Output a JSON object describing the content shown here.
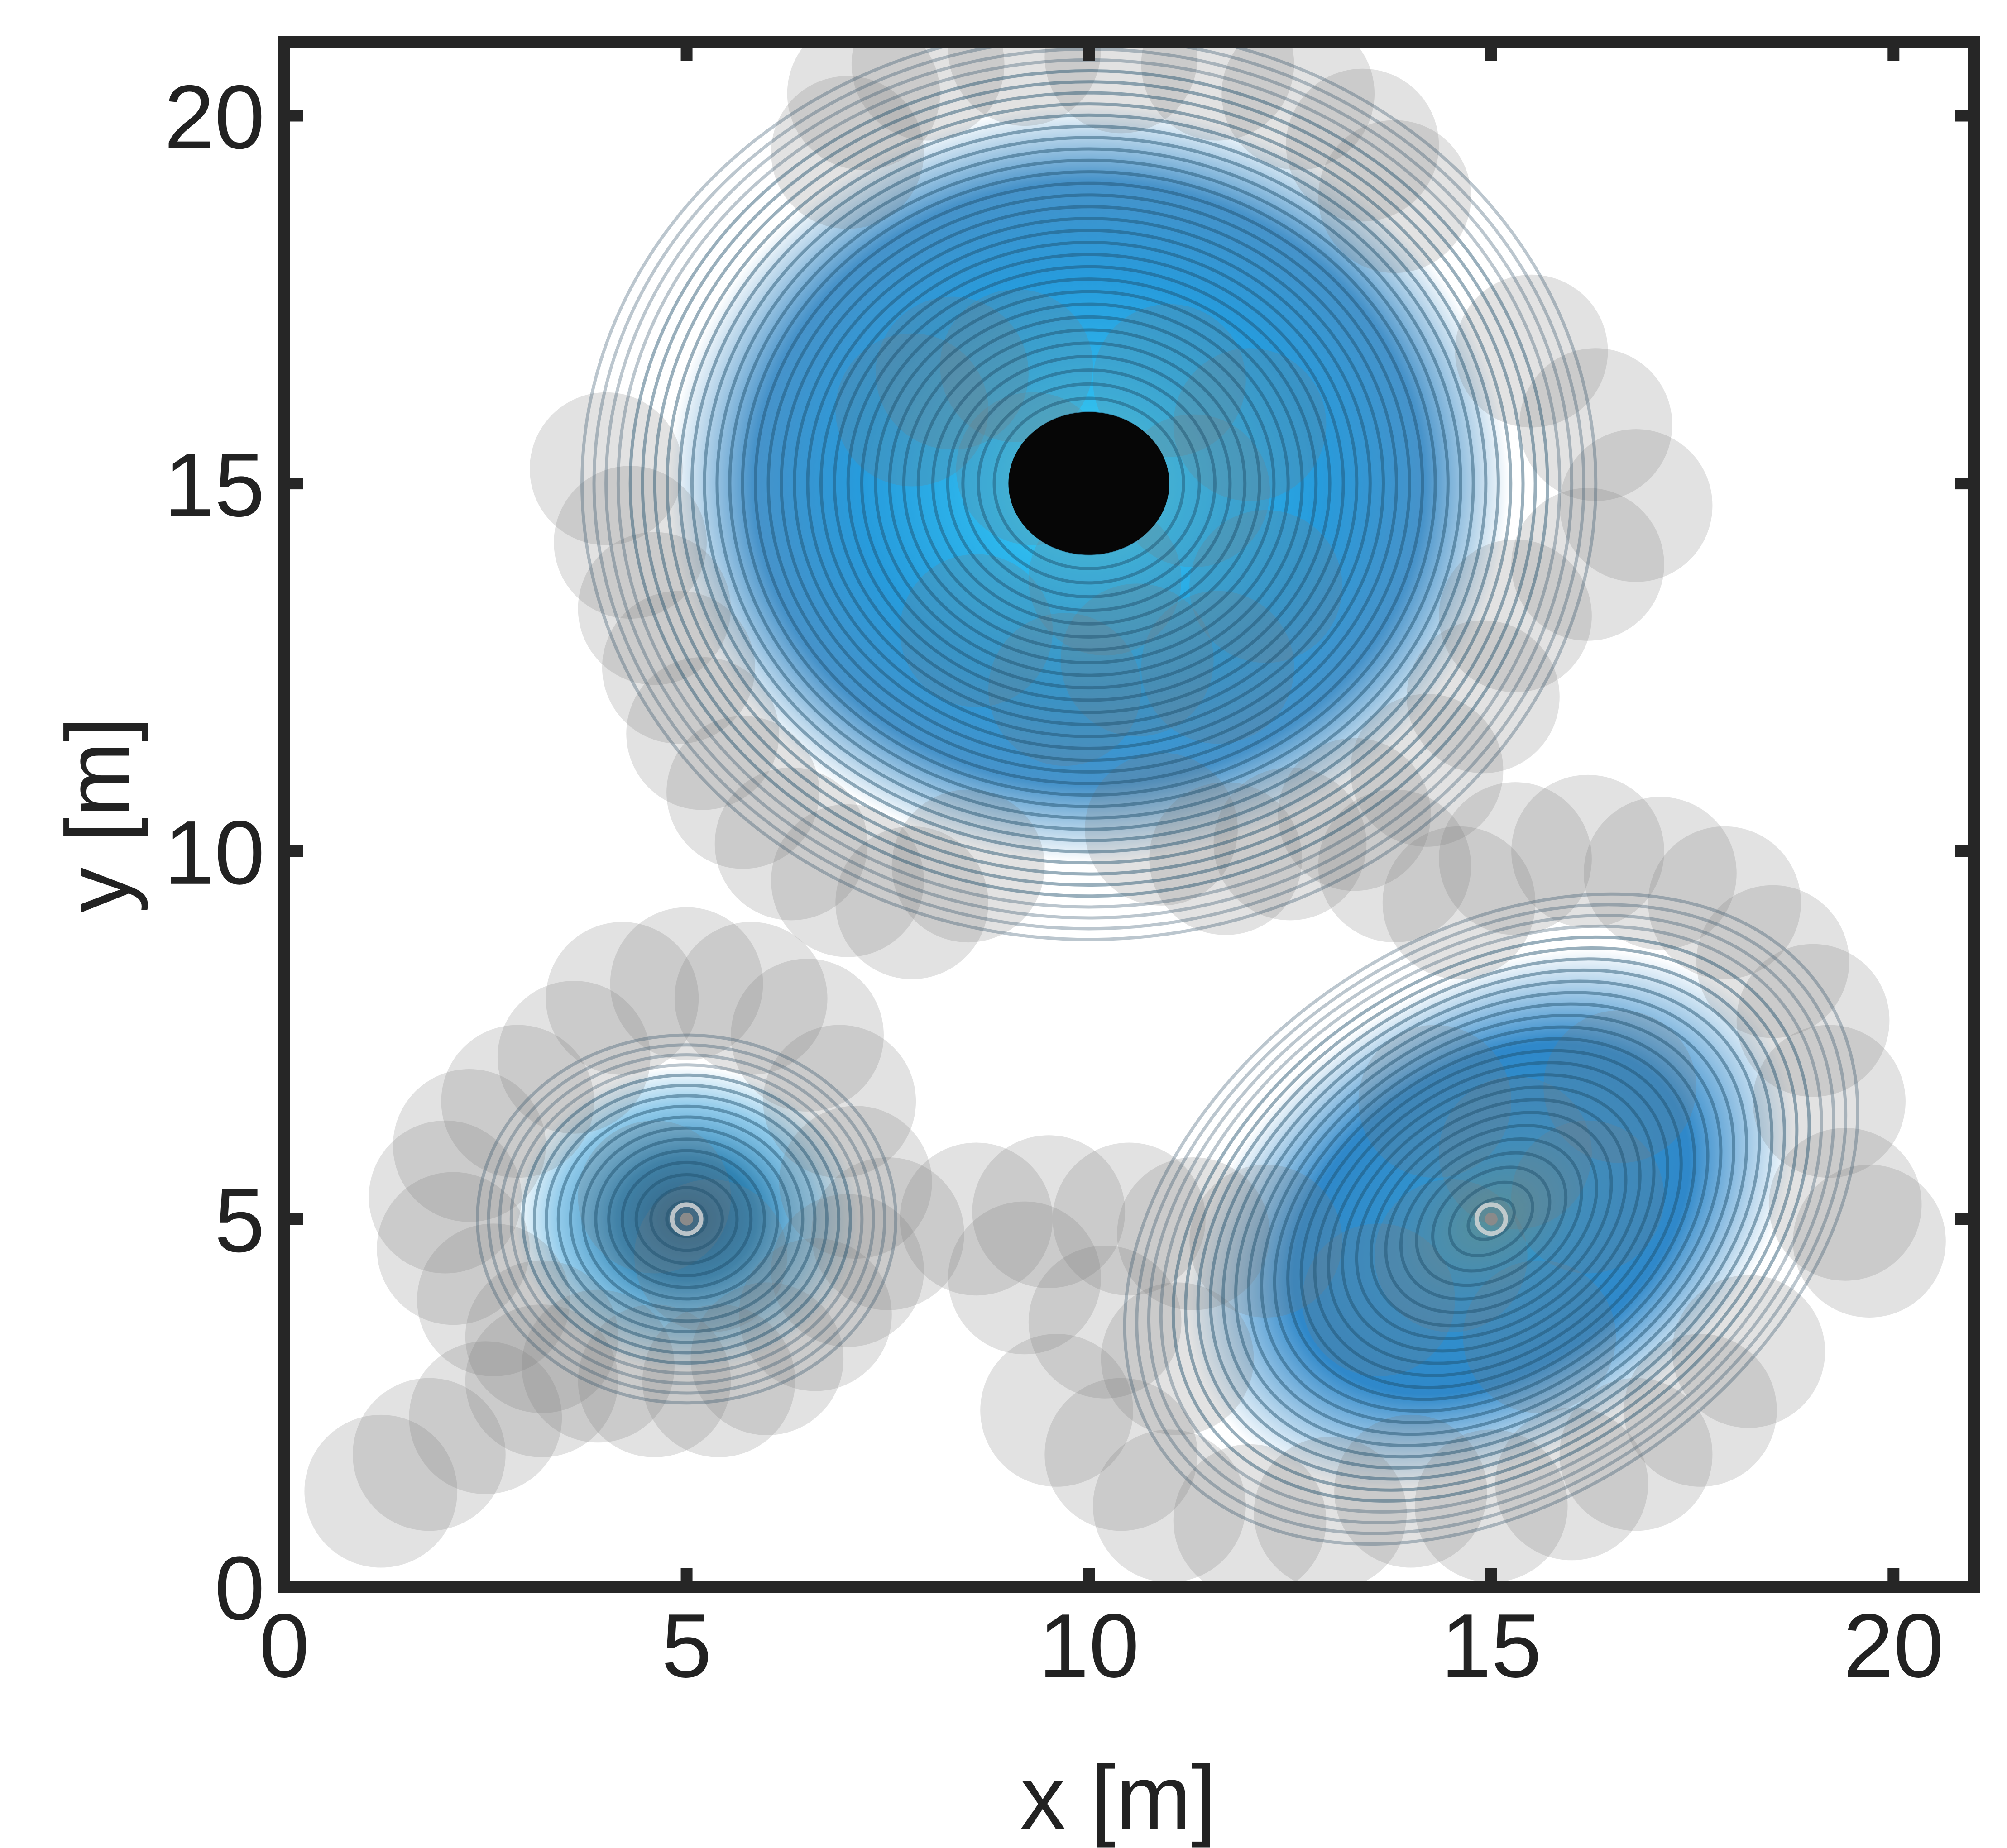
{
  "chart_data": {
    "type": "contour",
    "xlabel": "x [m]",
    "ylabel": "y [m]",
    "xlim": [
      0,
      21
    ],
    "ylim": [
      0,
      21
    ],
    "xticks": [
      0,
      5,
      10,
      15,
      20
    ],
    "yticks": [
      0,
      5,
      10,
      15,
      20
    ],
    "grid": false,
    "sources": [
      {
        "x": 10,
        "y": 15,
        "rx": 6.3,
        "ry": 6.2,
        "rings": 36,
        "tilt": 0,
        "filled_core": true,
        "core_rx": 1.0,
        "core_ry": 1.0
      },
      {
        "x": 5,
        "y": 5,
        "rx": 2.6,
        "ry": 2.5,
        "rings": 16,
        "tilt": 0,
        "filled_core": false
      },
      {
        "x": 15,
        "y": 5,
        "rx": 5.0,
        "ry": 3.8,
        "rings": 26,
        "tilt": 35,
        "filled_core": false
      }
    ],
    "obstacles": [
      [
        7.2,
        20.3
      ],
      [
        8.0,
        20.7
      ],
      [
        9.2,
        20.9
      ],
      [
        10.4,
        20.8
      ],
      [
        11.6,
        20.7
      ],
      [
        12.6,
        20.3
      ],
      [
        13.4,
        19.6
      ],
      [
        13.8,
        18.9
      ],
      [
        7.0,
        19.5
      ],
      [
        4.0,
        15.2
      ],
      [
        4.3,
        14.2
      ],
      [
        4.6,
        13.3
      ],
      [
        4.9,
        12.5
      ],
      [
        5.2,
        11.6
      ],
      [
        5.7,
        10.8
      ],
      [
        6.3,
        10.1
      ],
      [
        7.0,
        9.6
      ],
      [
        7.8,
        9.3
      ],
      [
        8.5,
        9.8
      ],
      [
        7.8,
        16.0
      ],
      [
        8.3,
        16.5
      ],
      [
        9.3,
        15.2
      ],
      [
        10.2,
        13.7
      ],
      [
        11.3,
        14.9
      ],
      [
        12.0,
        15.8
      ],
      [
        12.2,
        13.6
      ],
      [
        11.6,
        12.5
      ],
      [
        10.6,
        12.6
      ],
      [
        9.7,
        12.2
      ],
      [
        8.6,
        13.0
      ],
      [
        9.1,
        16.6
      ],
      [
        11.0,
        16.4
      ],
      [
        15.5,
        16.8
      ],
      [
        16.3,
        15.8
      ],
      [
        16.8,
        14.7
      ],
      [
        16.2,
        13.9
      ],
      [
        15.3,
        13.2
      ],
      [
        14.9,
        12.1
      ],
      [
        14.2,
        11.1
      ],
      [
        13.3,
        10.5
      ],
      [
        12.5,
        10.1
      ],
      [
        11.7,
        9.9
      ],
      [
        10.9,
        10.3
      ],
      [
        13.8,
        9.8
      ],
      [
        14.6,
        9.3
      ],
      [
        15.3,
        9.9
      ],
      [
        16.2,
        10.0
      ],
      [
        17.1,
        9.7
      ],
      [
        17.9,
        9.3
      ],
      [
        18.5,
        8.5
      ],
      [
        19.0,
        7.7
      ],
      [
        19.2,
        6.6
      ],
      [
        19.4,
        5.2
      ],
      [
        19.7,
        4.7
      ],
      [
        4.2,
        8.0
      ],
      [
        5.0,
        8.2
      ],
      [
        5.8,
        8.0
      ],
      [
        6.5,
        7.5
      ],
      [
        6.9,
        6.6
      ],
      [
        7.1,
        5.5
      ],
      [
        7.5,
        4.8
      ],
      [
        7.0,
        4.3
      ],
      [
        6.6,
        3.7
      ],
      [
        6.0,
        3.1
      ],
      [
        5.4,
        2.8
      ],
      [
        4.6,
        2.8
      ],
      [
        3.9,
        3.0
      ],
      [
        3.2,
        3.4
      ],
      [
        2.6,
        3.9
      ],
      [
        2.1,
        4.6
      ],
      [
        2.0,
        5.3
      ],
      [
        2.3,
        6.0
      ],
      [
        2.9,
        6.6
      ],
      [
        3.6,
        7.2
      ],
      [
        4.6,
        5.3
      ],
      [
        5.3,
        4.5
      ],
      [
        1.2,
        1.3
      ],
      [
        1.8,
        1.8
      ],
      [
        2.5,
        2.3
      ],
      [
        3.2,
        2.8
      ],
      [
        8.6,
        5.0
      ],
      [
        9.5,
        5.1
      ],
      [
        10.5,
        5.0
      ],
      [
        11.3,
        4.8
      ],
      [
        12.2,
        4.7
      ],
      [
        9.2,
        4.2
      ],
      [
        10.2,
        3.6
      ],
      [
        11.1,
        3.1
      ],
      [
        9.6,
        2.4
      ],
      [
        10.4,
        1.8
      ],
      [
        11.0,
        1.1
      ],
      [
        12.0,
        0.9
      ],
      [
        13.0,
        1.0
      ],
      [
        14.0,
        1.3
      ],
      [
        15.0,
        1.1
      ],
      [
        16.0,
        1.4
      ],
      [
        16.8,
        1.8
      ],
      [
        17.6,
        2.4
      ],
      [
        18.2,
        3.2
      ],
      [
        13.6,
        3.9
      ],
      [
        14.5,
        4.5
      ],
      [
        15.3,
        5.9
      ],
      [
        16.2,
        5.3
      ],
      [
        15.6,
        3.4
      ],
      [
        14.3,
        6.6
      ],
      [
        16.6,
        6.8
      ]
    ],
    "colors": {
      "frame": "#262626",
      "contour": "#1c4d6b",
      "field_inner": "#0a8fd8",
      "field_outer": "#0a6fb8",
      "core": "#060606",
      "obstacle": "#7a7a7a",
      "text": "#222222"
    }
  }
}
